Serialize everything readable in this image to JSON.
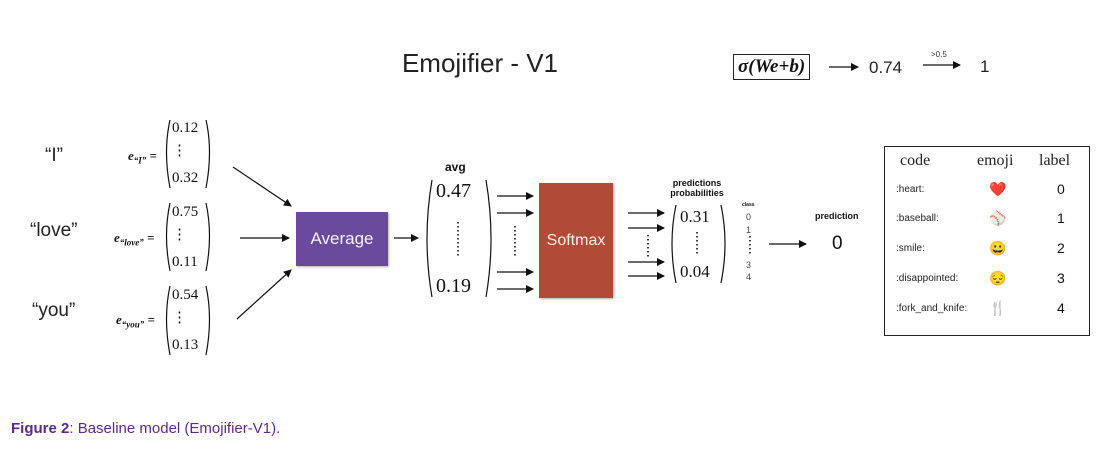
{
  "title": "Emojifier - V1",
  "sigma": {
    "formula": "σ(We+b)",
    "value": "0.74",
    "threshold_label": ">0.5",
    "result": "1"
  },
  "inputs": [
    {
      "word": "“I”",
      "vec_label": "e",
      "vec_sub": "“I”",
      "top": "0.12",
      "bottom": "0.32"
    },
    {
      "word": "“love”",
      "vec_label": "e",
      "vec_sub": "“love”",
      "top": "0.75",
      "bottom": "0.11"
    },
    {
      "word": "“you”",
      "vec_label": "e",
      "vec_sub": "“you”",
      "top": "0.54",
      "bottom": "0.13"
    }
  ],
  "equals": "=",
  "vdots": "⋮",
  "average_label": "Average",
  "avg": {
    "header": "avg",
    "top": "0.47",
    "bottom": "0.19"
  },
  "softmax_label": "Softmax",
  "pred_probs": {
    "header_line1": "predictions",
    "header_line2": "probabilities",
    "top": "0.31",
    "bottom": "0.04"
  },
  "class_col": {
    "header": "class",
    "items": [
      "0",
      "1",
      "3",
      "4"
    ]
  },
  "prediction": {
    "header": "prediction",
    "value": "0"
  },
  "table": {
    "headers": [
      "code",
      "emoji",
      "label"
    ],
    "rows": [
      {
        "code": ":heart:",
        "emoji": "❤️",
        "emoji_icon": "heart-icon",
        "label": "0"
      },
      {
        "code": ":baseball:",
        "emoji": "⚾",
        "emoji_icon": "baseball-icon",
        "label": "1"
      },
      {
        "code": ":smile:",
        "emoji": "😀",
        "emoji_icon": "smile-icon",
        "label": "2"
      },
      {
        "code": ":disappointed:",
        "emoji": "😔",
        "emoji_icon": "disappointed-icon",
        "label": "3"
      },
      {
        "code": ":fork_and_knife:",
        "emoji": "🍴",
        "emoji_icon": "fork-and-knife-icon",
        "label": "4"
      }
    ]
  },
  "caption": {
    "bold": "Figure 2",
    "text": ": Baseline model (Emojifier-V1)."
  },
  "colors": {
    "average_box": "#6a4a9c",
    "softmax_box": "#b14a36",
    "caption": "#5b2a8a"
  }
}
